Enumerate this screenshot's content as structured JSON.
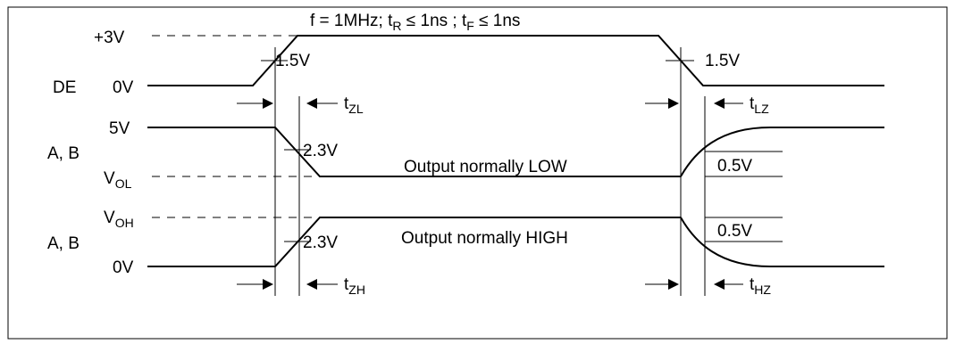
{
  "header": {
    "f": "f = 1MHz; t",
    "tr_sub": "R",
    "tr_cond": " ≤ 1ns ; t",
    "tf_sub": "F",
    "tf_cond": " ≤ 1ns"
  },
  "signals": {
    "de": {
      "name": "DE",
      "high": "+3V",
      "low": "0V",
      "rise_threshold": "1.5V",
      "fall_threshold": "1.5V"
    },
    "ab_low": {
      "name": "A, B",
      "high": "5V",
      "low_prefix": "V",
      "low_sub": "OL",
      "threshold": "2.3V",
      "note": "Output normally LOW",
      "delta": "0.5V"
    },
    "ab_high": {
      "name": "A, B",
      "high_prefix": "V",
      "high_sub": "OH",
      "low": "0V",
      "threshold": "2.3V",
      "note": "Output normally HIGH",
      "delta": "0.5V"
    }
  },
  "timings": {
    "tzl": {
      "prefix": "t",
      "sub": "ZL"
    },
    "tlz": {
      "prefix": "t",
      "sub": "LZ"
    },
    "tzh": {
      "prefix": "t",
      "sub": "ZH"
    },
    "thz": {
      "prefix": "t",
      "sub": "HZ"
    }
  },
  "colors": {
    "line": "#000000",
    "background": "#ffffff"
  }
}
